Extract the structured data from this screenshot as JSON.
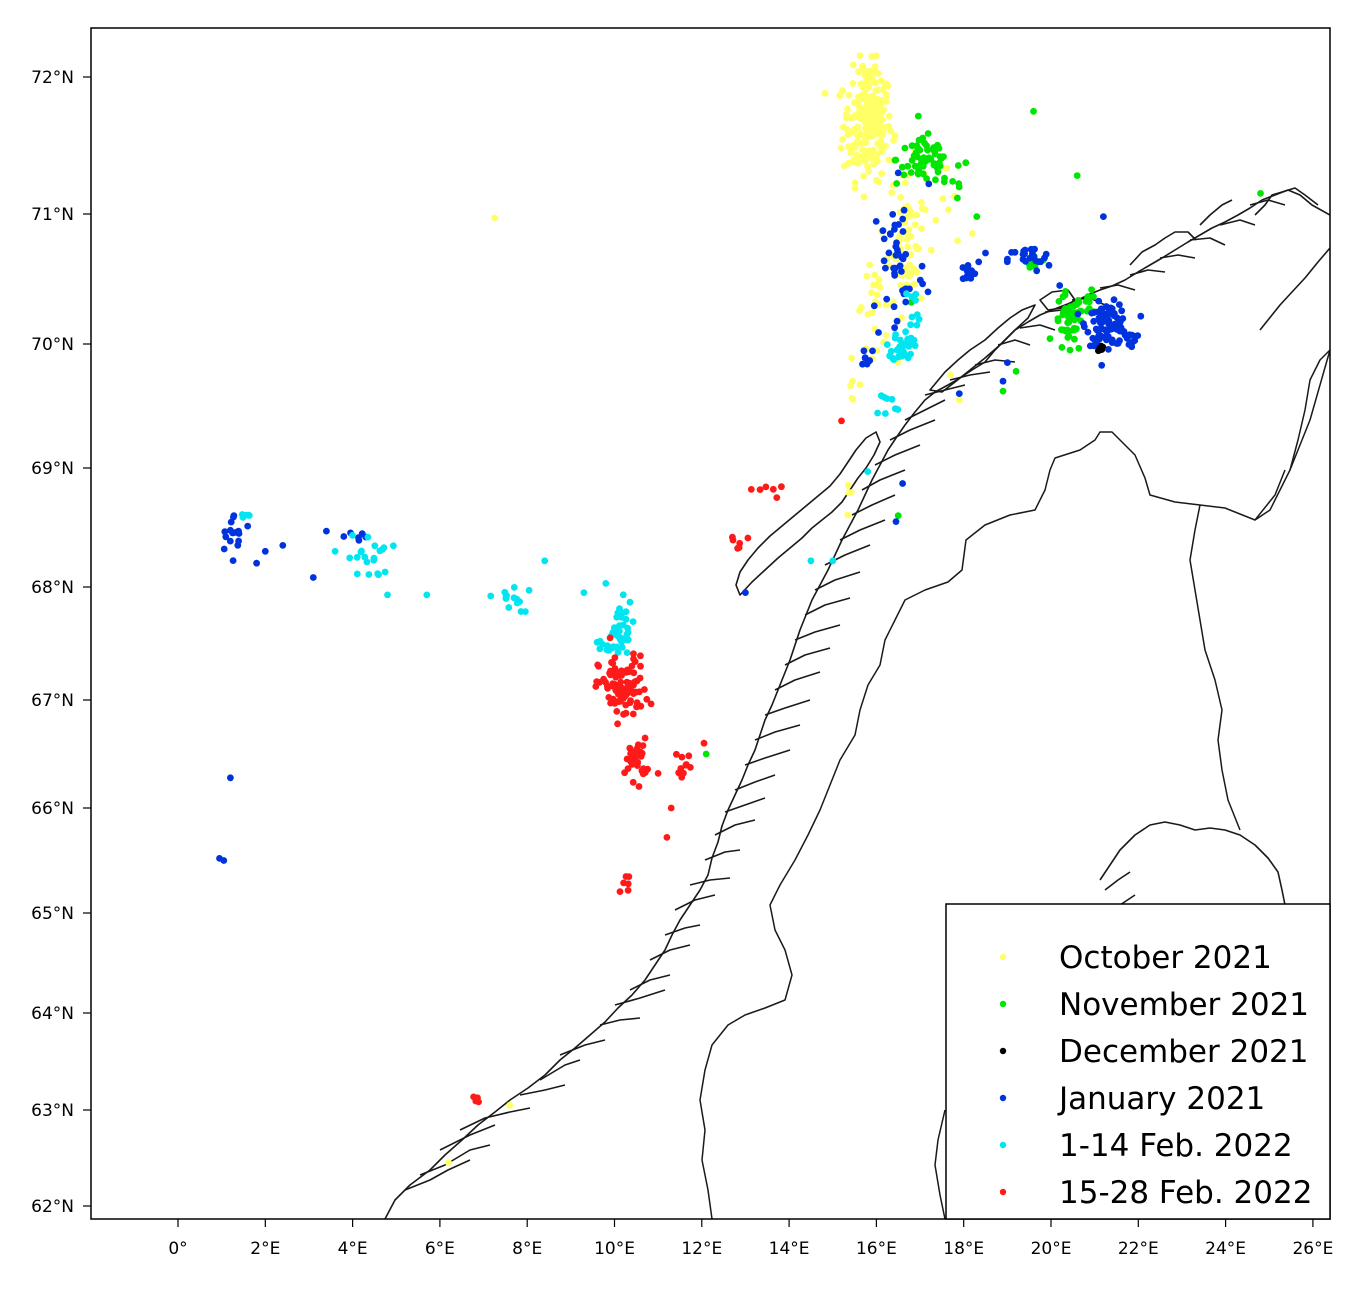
{
  "map": {
    "lon_range": [
      -2,
      26.5
    ],
    "lat_range": [
      61.85,
      72.4
    ],
    "lon_ticks": [
      {
        "value": 0,
        "label": "0°"
      },
      {
        "value": 2,
        "label": "2°E"
      },
      {
        "value": 4,
        "label": "4°E"
      },
      {
        "value": 6,
        "label": "6°E"
      },
      {
        "value": 8,
        "label": "8°E"
      },
      {
        "value": 10,
        "label": "10°E"
      },
      {
        "value": 12,
        "label": "12°E"
      },
      {
        "value": 14,
        "label": "14°E"
      },
      {
        "value": 16,
        "label": "16°E"
      },
      {
        "value": 18,
        "label": "18°E"
      },
      {
        "value": 20,
        "label": "20°E"
      },
      {
        "value": 22,
        "label": "22°E"
      },
      {
        "value": 24,
        "label": "24°E"
      },
      {
        "value": 26,
        "label": "26°E"
      }
    ],
    "lat_ticks": [
      {
        "value": 72,
        "label": "72°N"
      },
      {
        "value": 71,
        "label": "71°N"
      },
      {
        "value": 70,
        "label": "70°N"
      },
      {
        "value": 69,
        "label": "69°N"
      },
      {
        "value": 68,
        "label": "68°N"
      },
      {
        "value": 67,
        "label": "67°N"
      },
      {
        "value": 66,
        "label": "66°N"
      },
      {
        "value": 65,
        "label": "65°N"
      },
      {
        "value": 64,
        "label": "64°N"
      },
      {
        "value": 63,
        "label": "63°N"
      },
      {
        "value": 62,
        "label": "62°N"
      }
    ]
  },
  "legend": {
    "items": [
      {
        "label": "October 2021",
        "color": "#ffff66"
      },
      {
        "label": "November 2021",
        "color": "#00e600"
      },
      {
        "label": "December 2021",
        "color": "#000000"
      },
      {
        "label": "January 2021",
        "color": "#0033dd"
      },
      {
        "label": "1-14 Feb. 2022",
        "color": "#00e5f0"
      },
      {
        "label": "15-28 Feb. 2022",
        "color": "#ff1a1a"
      }
    ]
  },
  "series_data": [
    {
      "color": "#ffff66",
      "clusters": [
        {
          "lon": 15.8,
          "lat": 71.65,
          "sdlon": 0.35,
          "sdlat": 0.25,
          "n": 190
        },
        {
          "lon": 15.9,
          "lat": 72.0,
          "sdlon": 0.15,
          "sdlat": 0.08,
          "n": 20
        },
        {
          "lon": 16.7,
          "lat": 70.8,
          "sdlon": 0.25,
          "sdlat": 0.35,
          "n": 70
        },
        {
          "lon": 16.0,
          "lat": 70.3,
          "sdlon": 0.3,
          "sdlat": 0.2,
          "n": 25
        },
        {
          "lon": 15.4,
          "lat": 69.7,
          "sdlon": 0.15,
          "sdlat": 0.1,
          "n": 6
        },
        {
          "lon": 17.5,
          "lat": 71.1,
          "sdlon": 0.2,
          "sdlat": 0.15,
          "n": 6
        },
        {
          "lon": 15.4,
          "lat": 68.75,
          "sdlon": 0.05,
          "sdlat": 0.1,
          "n": 4
        }
      ],
      "points": [
        [
          7.25,
          70.97
        ],
        [
          17.7,
          69.75
        ],
        [
          17.9,
          69.55
        ],
        [
          6.2,
          62.45
        ],
        [
          7.6,
          63.05
        ],
        [
          18.2,
          70.85
        ]
      ]
    },
    {
      "color": "#00e600",
      "clusters": [
        {
          "lon": 17.1,
          "lat": 71.4,
          "sdlon": 0.4,
          "sdlat": 0.12,
          "n": 55
        },
        {
          "lon": 17.6,
          "lat": 71.25,
          "sdlon": 0.35,
          "sdlat": 0.1,
          "n": 12
        },
        {
          "lon": 20.4,
          "lat": 70.15,
          "sdlon": 0.2,
          "sdlat": 0.15,
          "n": 45
        },
        {
          "lon": 20.9,
          "lat": 70.3,
          "sdlon": 0.12,
          "sdlat": 0.06,
          "n": 12
        },
        {
          "lon": 19.6,
          "lat": 70.62,
          "sdlon": 0.12,
          "sdlat": 0.05,
          "n": 8
        }
      ],
      "points": [
        [
          19.6,
          71.75
        ],
        [
          20.6,
          71.28
        ],
        [
          24.8,
          71.15
        ],
        [
          18.3,
          70.98
        ],
        [
          16.8,
          70.32
        ],
        [
          18.9,
          69.62
        ],
        [
          19.2,
          69.78
        ],
        [
          16.5,
          68.6
        ],
        [
          12.1,
          66.5
        ]
      ]
    },
    {
      "color": "#000000",
      "clusters": [
        {
          "lon": 21.15,
          "lat": 69.97,
          "sdlon": 0.05,
          "sdlat": 0.03,
          "n": 8
        }
      ],
      "points": []
    },
    {
      "color": "#0033dd",
      "clusters": [
        {
          "lon": 21.3,
          "lat": 70.15,
          "sdlon": 0.3,
          "sdlat": 0.1,
          "n": 95
        },
        {
          "lon": 21.8,
          "lat": 70.05,
          "sdlon": 0.1,
          "sdlat": 0.04,
          "n": 12
        },
        {
          "lon": 18.1,
          "lat": 70.55,
          "sdlon": 0.15,
          "sdlat": 0.05,
          "n": 15
        },
        {
          "lon": 19.5,
          "lat": 70.65,
          "sdlon": 0.3,
          "sdlat": 0.06,
          "n": 22
        },
        {
          "lon": 16.5,
          "lat": 70.6,
          "sdlon": 0.4,
          "sdlat": 0.4,
          "n": 45
        },
        {
          "lon": 15.8,
          "lat": 69.9,
          "sdlon": 0.12,
          "sdlat": 0.06,
          "n": 8
        },
        {
          "lon": 1.3,
          "lat": 68.45,
          "sdlon": 0.25,
          "sdlat": 0.1,
          "n": 18
        },
        {
          "lon": 4.1,
          "lat": 68.42,
          "sdlon": 0.2,
          "sdlat": 0.06,
          "n": 6
        }
      ],
      "points": [
        [
          16.5,
          71.3
        ],
        [
          17.2,
          71.22
        ],
        [
          21.2,
          70.98
        ],
        [
          18.5,
          70.7
        ],
        [
          20.2,
          70.45
        ],
        [
          17.9,
          69.6
        ],
        [
          18.9,
          69.7
        ],
        [
          19.0,
          69.85
        ],
        [
          16.6,
          68.87
        ],
        [
          16.45,
          68.55
        ],
        [
          13.0,
          67.95
        ],
        [
          3.4,
          68.47
        ],
        [
          3.1,
          68.08
        ],
        [
          2.4,
          68.35
        ],
        [
          2.0,
          68.3
        ],
        [
          1.8,
          68.2
        ],
        [
          1.2,
          66.28
        ],
        [
          0.95,
          65.52
        ],
        [
          1.05,
          65.5
        ]
      ]
    },
    {
      "color": "#00e5f0",
      "clusters": [
        {
          "lon": 16.6,
          "lat": 69.98,
          "sdlon": 0.15,
          "sdlat": 0.08,
          "n": 35
        },
        {
          "lon": 16.9,
          "lat": 70.3,
          "sdlon": 0.1,
          "sdlat": 0.1,
          "n": 10
        },
        {
          "lon": 16.2,
          "lat": 69.5,
          "sdlon": 0.2,
          "sdlat": 0.08,
          "n": 8
        },
        {
          "lon": 10.1,
          "lat": 67.65,
          "sdlon": 0.2,
          "sdlat": 0.15,
          "n": 30
        },
        {
          "lon": 9.8,
          "lat": 67.45,
          "sdlon": 0.2,
          "sdlat": 0.05,
          "n": 12
        },
        {
          "lon": 7.6,
          "lat": 67.9,
          "sdlon": 0.3,
          "sdlat": 0.08,
          "n": 14
        },
        {
          "lon": 4.4,
          "lat": 68.25,
          "sdlon": 0.3,
          "sdlat": 0.12,
          "n": 20
        },
        {
          "lon": 1.55,
          "lat": 68.6,
          "sdlon": 0.06,
          "sdlat": 0.02,
          "n": 5
        }
      ],
      "points": [
        [
          8.4,
          68.22
        ],
        [
          9.3,
          67.95
        ],
        [
          9.8,
          68.03
        ],
        [
          5.7,
          67.93
        ],
        [
          4.8,
          67.93
        ],
        [
          3.6,
          68.3
        ],
        [
          15.0,
          68.22
        ],
        [
          14.5,
          68.22
        ],
        [
          15.8,
          68.97
        ]
      ]
    },
    {
      "color": "#ff1a1a",
      "clusters": [
        {
          "lon": 10.2,
          "lat": 67.1,
          "sdlon": 0.35,
          "sdlat": 0.18,
          "n": 95
        },
        {
          "lon": 10.5,
          "lat": 66.45,
          "sdlon": 0.15,
          "sdlat": 0.12,
          "n": 30
        },
        {
          "lon": 11.6,
          "lat": 66.42,
          "sdlon": 0.12,
          "sdlat": 0.08,
          "n": 10
        },
        {
          "lon": 10.25,
          "lat": 65.28,
          "sdlon": 0.1,
          "sdlat": 0.05,
          "n": 6
        },
        {
          "lon": 13.6,
          "lat": 68.8,
          "sdlon": 0.3,
          "sdlat": 0.06,
          "n": 6
        },
        {
          "lon": 12.8,
          "lat": 68.4,
          "sdlon": 0.2,
          "sdlat": 0.05,
          "n": 6
        },
        {
          "lon": 6.8,
          "lat": 63.1,
          "sdlon": 0.05,
          "sdlat": 0.02,
          "n": 4
        }
      ],
      "points": [
        [
          15.2,
          69.38
        ],
        [
          11.0,
          66.32
        ],
        [
          11.3,
          66.0
        ],
        [
          11.2,
          65.72
        ],
        [
          12.05,
          66.6
        ],
        [
          9.9,
          67.55
        ]
      ]
    }
  ]
}
